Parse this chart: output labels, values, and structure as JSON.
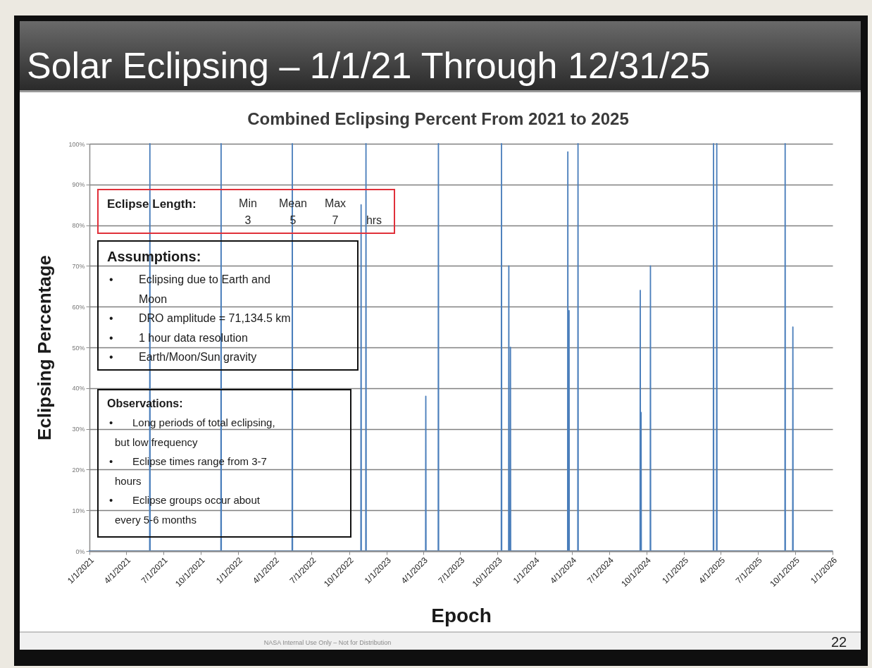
{
  "chart_data": {
    "type": "line",
    "title": "Solar Eclipsing – 1/1/21 Through  12/31/25",
    "subtitle": "Combined Eclipsing Percent From 2021 to 2025",
    "xlabel": "Epoch",
    "ylabel": "Eclipsing Percentage",
    "x": [
      "2021-01-01",
      "2021-05-29",
      "2021-05-29T12:00",
      "2021-05-30",
      "2021-11-20",
      "2021-11-20T12:00",
      "2021-11-21",
      "2022-05-14",
      "2022-05-14T12:00",
      "2022-05-15",
      "2022-10-30",
      "2022-10-30T12:00",
      "2022-10-31",
      "2022-11-11",
      "2022-11-11T12:00",
      "2022-11-12",
      "2023-04-07",
      "2023-04-07T12:00",
      "2023-04-08",
      "2023-05-08",
      "2023-05-08T12:00",
      "2023-05-09",
      "2023-10-10",
      "2023-10-10T12:00",
      "2023-10-11",
      "2023-10-28",
      "2023-10-28T12:00",
      "2023-10-29",
      "2023-11-01",
      "2023-11-01T12:00",
      "2023-11-02",
      "2024-03-21",
      "2024-03-21T12:00",
      "2024-03-22",
      "2024-03-24",
      "2024-03-24T12:00",
      "2024-03-25",
      "2024-04-15",
      "2024-04-15T12:00",
      "2024-04-16",
      "2024-09-15",
      "2024-09-15T12:00",
      "2024-09-16",
      "2024-09-17",
      "2024-09-17T12:00",
      "2024-09-18",
      "2024-10-10",
      "2024-10-10T12:00",
      "2024-10-11",
      "2025-03-14",
      "2025-03-14T12:00",
      "2025-03-15",
      "2025-03-22",
      "2025-03-22T12:00",
      "2025-03-23",
      "2025-09-06",
      "2025-09-06T12:00",
      "2025-09-07",
      "2025-09-25",
      "2025-09-25T12:00",
      "2025-09-26",
      "2025-12-31"
    ],
    "series": [
      {
        "color": "#4a7ebb",
        "values": [
          0,
          0,
          100,
          0,
          0,
          100,
          0,
          0,
          100,
          0,
          0,
          85,
          0,
          0,
          100,
          0,
          0,
          38,
          0,
          0,
          100,
          0,
          0,
          100,
          0,
          0,
          70,
          0,
          0,
          50,
          0,
          0,
          98,
          0,
          0,
          59,
          0,
          0,
          100,
          0,
          0,
          64,
          0,
          0,
          34,
          0,
          0,
          70,
          0,
          0,
          100,
          0,
          0,
          100,
          0,
          0,
          100,
          0,
          0,
          55,
          0,
          0
        ]
      }
    ],
    "xlim": [
      "2021-01-01",
      "2026-01-01"
    ],
    "xticks": [
      {
        "value": "2021-01-01",
        "label": "1/1/2021"
      },
      {
        "value": "2021-04-01",
        "label": "4/1/2021"
      },
      {
        "value": "2021-07-01",
        "label": "7/1/2021"
      },
      {
        "value": "2021-10-01",
        "label": "10/1/2021"
      },
      {
        "value": "2022-01-01",
        "label": "1/1/2022"
      },
      {
        "value": "2022-04-01",
        "label": "4/1/2022"
      },
      {
        "value": "2022-07-01",
        "label": "7/1/2022"
      },
      {
        "value": "2022-10-01",
        "label": "10/1/2022"
      },
      {
        "value": "2023-01-01",
        "label": "1/1/2023"
      },
      {
        "value": "2023-04-01",
        "label": "4/1/2023"
      },
      {
        "value": "2023-07-01",
        "label": "7/1/2023"
      },
      {
        "value": "2023-10-01",
        "label": "10/1/2023"
      },
      {
        "value": "2024-01-01",
        "label": "1/1/2024"
      },
      {
        "value": "2024-04-01",
        "label": "4/1/2024"
      },
      {
        "value": "2024-07-01",
        "label": "7/1/2024"
      },
      {
        "value": "2024-10-01",
        "label": "10/1/2024"
      },
      {
        "value": "2025-01-01",
        "label": "1/1/2025"
      },
      {
        "value": "2025-04-01",
        "label": "4/1/2025"
      },
      {
        "value": "2025-07-01",
        "label": "7/1/2025"
      },
      {
        "value": "2025-10-01",
        "label": "10/1/2025"
      },
      {
        "value": "2026-01-01",
        "label": "1/1/2026"
      }
    ],
    "ylim": [
      0,
      100
    ],
    "yticks": [
      {
        "value": 0,
        "label": "0%"
      },
      {
        "value": 10,
        "label": "10%"
      },
      {
        "value": 20,
        "label": "20%"
      },
      {
        "value": 30,
        "label": "30%"
      },
      {
        "value": 40,
        "label": "40%"
      },
      {
        "value": 50,
        "label": "50%"
      },
      {
        "value": 60,
        "label": "60%"
      },
      {
        "value": 70,
        "label": "70%"
      },
      {
        "value": 80,
        "label": "80%"
      },
      {
        "value": 90,
        "label": "90%"
      },
      {
        "value": 100,
        "label": "100%"
      }
    ],
    "grid": "y",
    "marker": "none",
    "line_style": "solid",
    "annotations": [
      "Eclipse Length:",
      "Min\n3",
      "Mean\n5",
      "Max\n7",
      "hrs",
      "Assumptions:\n• Eclipsing due to Earth and\nMoon\n• DRO amplitude  = 71,134.5 km\n• 1 hour data resolution\n• Earth/Moon/Sun  gravity",
      "Observations:\n• Long periods  of total eclipsing,\nbut low frequency\n• Eclipse times range  from 3-7\nhours\n• Eclipse groups occur about\nevery  5-6 months",
      "NASA Internal Use Only – Not for Distribution",
      "22"
    ]
  }
}
